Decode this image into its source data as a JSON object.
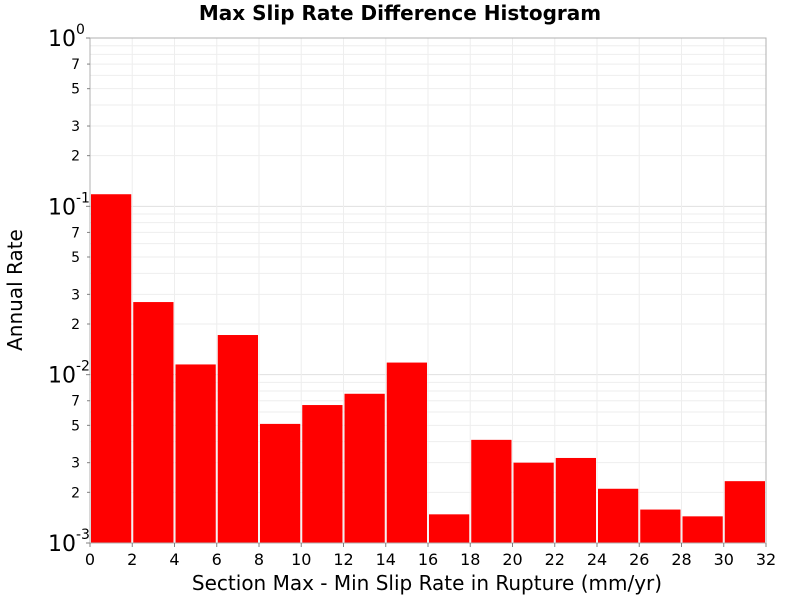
{
  "chart_data": {
    "type": "bar",
    "title": "Max Slip Rate Difference Histogram",
    "xlabel": "Section Max - Min Slip Rate in Rupture (mm/yr)",
    "ylabel": "Annual Rate",
    "xlim": [
      0,
      32
    ],
    "ylim": [
      0.001,
      1
    ],
    "yscale": "log",
    "grid": true,
    "bar_color": "#ff0000",
    "x_ticks": [
      "0",
      "2",
      "4",
      "6",
      "8",
      "10",
      "12",
      "14",
      "16",
      "18",
      "20",
      "22",
      "24",
      "26",
      "28",
      "30",
      "32"
    ],
    "y_major_ticks": [
      {
        "value": 1,
        "base": "10",
        "exp": "0"
      },
      {
        "value": 0.1,
        "base": "10",
        "exp": "-1"
      },
      {
        "value": 0.01,
        "base": "10",
        "exp": "-2"
      },
      {
        "value": 0.001,
        "base": "10",
        "exp": "-3"
      }
    ],
    "y_minor_tick_labels": [
      "2",
      "3",
      "5",
      "7"
    ],
    "bin_width": 2,
    "bins": [
      {
        "x": 1,
        "value": 0.118
      },
      {
        "x": 3,
        "value": 0.027
      },
      {
        "x": 5,
        "value": 0.0115
      },
      {
        "x": 7,
        "value": 0.0172
      },
      {
        "x": 9,
        "value": 0.0051
      },
      {
        "x": 11,
        "value": 0.0066
      },
      {
        "x": 13,
        "value": 0.0077
      },
      {
        "x": 15,
        "value": 0.0118
      },
      {
        "x": 17,
        "value": 0.00148
      },
      {
        "x": 19,
        "value": 0.0041
      },
      {
        "x": 21,
        "value": 0.003
      },
      {
        "x": 23,
        "value": 0.0032
      },
      {
        "x": 25,
        "value": 0.0021
      },
      {
        "x": 27,
        "value": 0.00158
      },
      {
        "x": 29,
        "value": 0.00144
      },
      {
        "x": 31,
        "value": 0.00233
      }
    ]
  }
}
